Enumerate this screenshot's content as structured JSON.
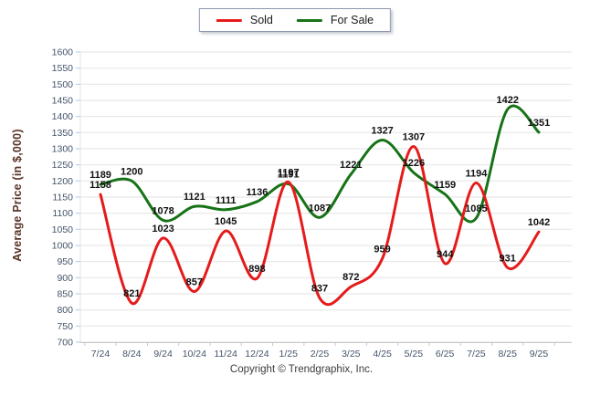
{
  "legend": {
    "sold_label": "Sold",
    "for_sale_label": "For Sale"
  },
  "y_axis_title": "Average Price (in $,000)",
  "copyright": "Copyright © Trendgraphix, Inc.",
  "colors": {
    "sold": "#e51b1b",
    "for_sale": "#177317",
    "gridline": "#e7e7e7",
    "axis_line": "#c9c9c9",
    "y_axis_tick": "#a9c7e8",
    "axis_text": "#44546a",
    "data_label_text": "#111111",
    "y_title_text": "#5b3427"
  },
  "chart_data": {
    "type": "line",
    "title": "",
    "xlabel": "",
    "ylabel": "Average Price (in $,000)",
    "categories": [
      "7/24",
      "8/24",
      "9/24",
      "10/24",
      "11/24",
      "12/24",
      "1/25",
      "2/25",
      "3/25",
      "4/25",
      "5/25",
      "6/25",
      "7/25",
      "8/25",
      "9/25"
    ],
    "series": [
      {
        "name": "For Sale",
        "color_key": "for_sale",
        "values": [
          1189,
          1200,
          1078,
          1121,
          1111,
          1136,
          1191,
          1087,
          1221,
          1327,
          1226,
          1159,
          1085,
          1422,
          1351
        ]
      },
      {
        "name": "Sold",
        "color_key": "sold",
        "values": [
          1158,
          821,
          1023,
          857,
          1045,
          898,
          1197,
          837,
          872,
          959,
          1307,
          944,
          1194,
          931,
          1042
        ]
      }
    ],
    "ylim": [
      700,
      1600
    ],
    "ytick_step": 50,
    "grid": true,
    "legend_position": "top-center",
    "data_labels": true
  }
}
